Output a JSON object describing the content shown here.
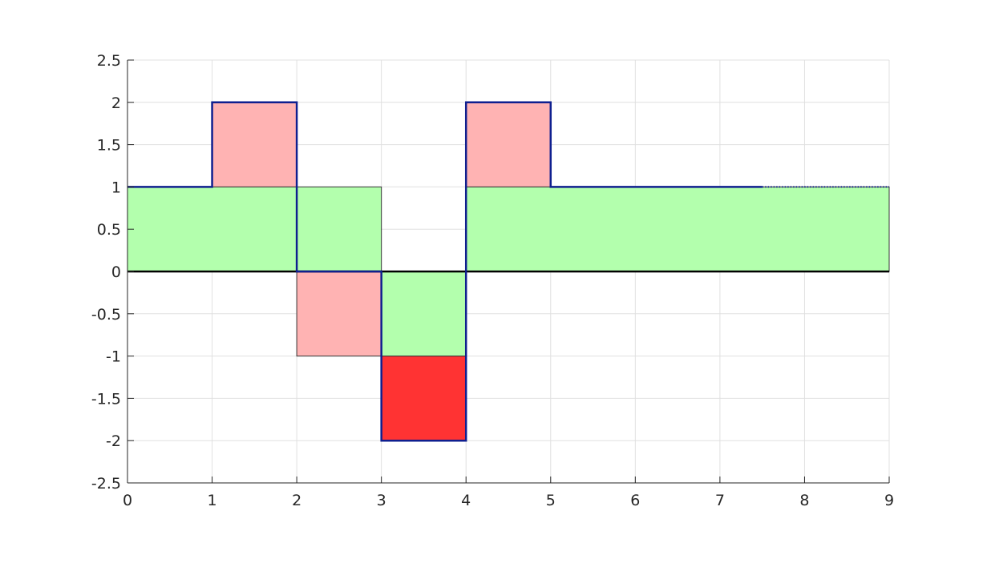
{
  "chart_data": {
    "type": "area",
    "xlim": [
      0,
      9
    ],
    "ylim": [
      -2.5,
      2.5
    ],
    "grid": true,
    "x_ticks": [
      "0",
      "1",
      "2",
      "3",
      "4",
      "5",
      "6",
      "7",
      "8",
      "9"
    ],
    "y_ticks": [
      "2.5",
      "2",
      "1.5",
      "1",
      "0.5",
      "0",
      "-0.5",
      "-1",
      "-1.5",
      "-2",
      "-2.5"
    ],
    "x_tick_values": [
      0,
      1,
      2,
      3,
      4,
      5,
      6,
      7,
      8,
      9
    ],
    "y_tick_values": [
      2.5,
      2,
      1.5,
      1,
      0.5,
      0,
      -0.5,
      -1,
      -1.5,
      -2,
      -2.5
    ],
    "regions": [
      {
        "kind": "green",
        "x": [
          0,
          3
        ],
        "y": [
          0,
          1
        ]
      },
      {
        "kind": "green",
        "x": [
          3,
          4
        ],
        "y": [
          -1,
          0
        ]
      },
      {
        "kind": "green",
        "x": [
          4,
          9
        ],
        "y": [
          0,
          1
        ]
      },
      {
        "kind": "light-red",
        "x": [
          1,
          2
        ],
        "y": [
          1,
          2
        ]
      },
      {
        "kind": "light-red",
        "x": [
          2,
          3
        ],
        "y": [
          -1,
          0
        ]
      },
      {
        "kind": "light-red",
        "x": [
          4,
          5
        ],
        "y": [
          1,
          2
        ]
      },
      {
        "kind": "red",
        "x": [
          3,
          4
        ],
        "y": [
          -2,
          -1
        ]
      }
    ],
    "step_signal": {
      "x": [
        0,
        1,
        1,
        2,
        2,
        3,
        3,
        4,
        4,
        5,
        5,
        7.5
      ],
      "y": [
        1,
        1,
        2,
        2,
        0,
        0,
        -2,
        -2,
        2,
        2,
        1,
        1
      ]
    },
    "dotted_continuation": {
      "x": [
        7.5,
        9
      ],
      "y": [
        1,
        1
      ]
    },
    "zero_line": {
      "x": [
        0,
        9
      ],
      "y": [
        0,
        0
      ]
    },
    "colors": {
      "green": "#b3ffad",
      "light_red": "#ffb3b3",
      "red": "#ff3333",
      "signal": "#0f1f8f",
      "zero_line": "#000000",
      "grid": "#e0e0e0",
      "axis": "#262626"
    }
  }
}
